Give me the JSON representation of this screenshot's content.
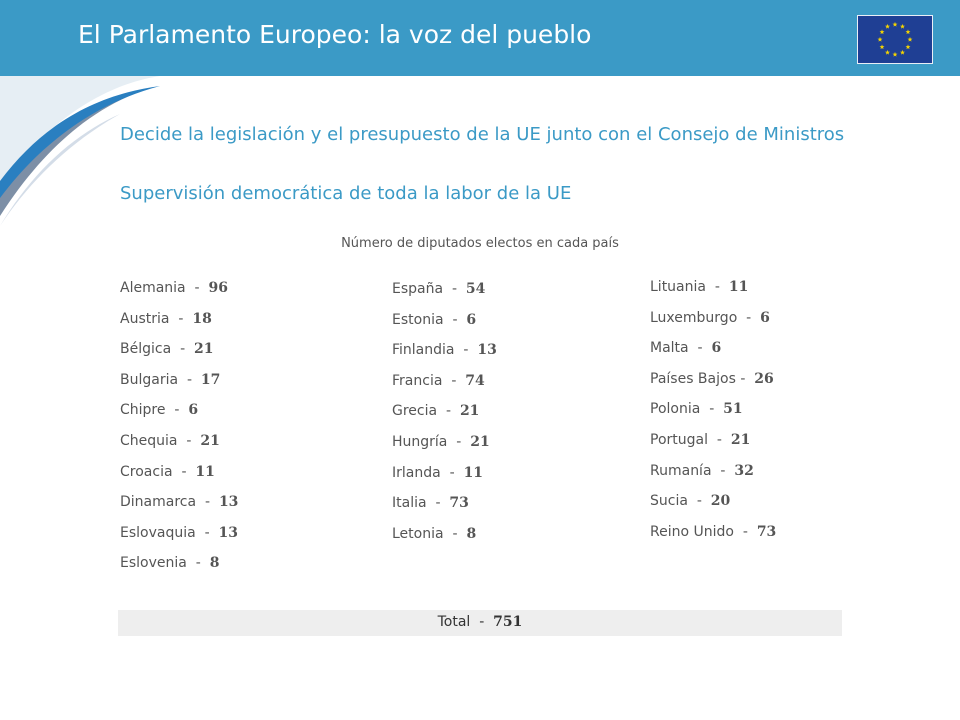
{
  "header": {
    "title": "El Parlamento Europeo: la voz del pueblo",
    "flag_icon": "eu-flag-icon"
  },
  "bullets": [
    "Decide la legislación y el presupuesto de la UE junto con el Consejo de Ministros",
    "Supervisión democrática de toda la labor de la UE"
  ],
  "subtitle": "Número de diputados electos en cada país",
  "columns": [
    [
      {
        "country": "Alemania",
        "sep": "  -  ",
        "seats": "96"
      },
      {
        "country": "Austria",
        "sep": "  -  ",
        "seats": "18"
      },
      {
        "country": "Bélgica",
        "sep": "  -  ",
        "seats": "21"
      },
      {
        "country": "Bulgaria",
        "sep": "  -  ",
        "seats": "17"
      },
      {
        "country": "Chipre",
        "sep": "  -  ",
        "seats": "6"
      },
      {
        "country": "Chequia",
        "sep": "  -  ",
        "seats": "21"
      },
      {
        "country": "Croacia",
        "sep": "  -  ",
        "seats": "11"
      },
      {
        "country": "Dinamarca",
        "sep": "  -  ",
        "seats": "13"
      },
      {
        "country": "Eslovaquia",
        "sep": "  -  ",
        "seats": "13"
      },
      {
        "country": "Eslovenia",
        "sep": "  -  ",
        "seats": "8"
      }
    ],
    [
      {
        "country": "España",
        "sep": "  -  ",
        "seats": "54"
      },
      {
        "country": "Estonia",
        "sep": "  -  ",
        "seats": "6"
      },
      {
        "country": "Finlandia",
        "sep": "  -  ",
        "seats": "13"
      },
      {
        "country": "Francia",
        "sep": "  -  ",
        "seats": "74"
      },
      {
        "country": "Grecia",
        "sep": "  -  ",
        "seats": "21"
      },
      {
        "country": "Hungría",
        "sep": "  -  ",
        "seats": "21"
      },
      {
        "country": "Irlanda",
        "sep": "  -  ",
        "seats": "11"
      },
      {
        "country": "Italia",
        "sep": "  -  ",
        "seats": "73"
      },
      {
        "country": "Letonia",
        "sep": "  -  ",
        "seats": "8"
      }
    ],
    [
      {
        "country": "Lituania",
        "sep": "  -  ",
        "seats": "11"
      },
      {
        "country": "Luxemburgo",
        "sep": "  -  ",
        "seats": "6"
      },
      {
        "country": "Malta",
        "sep": "  -  ",
        "seats": "6"
      },
      {
        "country": "Países Bajos",
        "sep": " -  ",
        "seats": "26"
      },
      {
        "country": "Polonia",
        "sep": "  -  ",
        "seats": "51"
      },
      {
        "country": "Portugal",
        "sep": "  -  ",
        "seats": "21"
      },
      {
        "country": "Rumanía",
        "sep": "  -  ",
        "seats": "32"
      },
      {
        "country": "Sucia",
        "sep": "  -  ",
        "seats": "20"
      },
      {
        "country": "Reino Unido",
        "sep": "  -  ",
        "seats": "73"
      }
    ]
  ],
  "total": {
    "label": "Total",
    "sep": "  -  ",
    "value": "751"
  },
  "colors": {
    "accent": "#3b9ac6",
    "flag_blue": "#1f3f94",
    "star": "#f5d400",
    "text": "#555555"
  }
}
